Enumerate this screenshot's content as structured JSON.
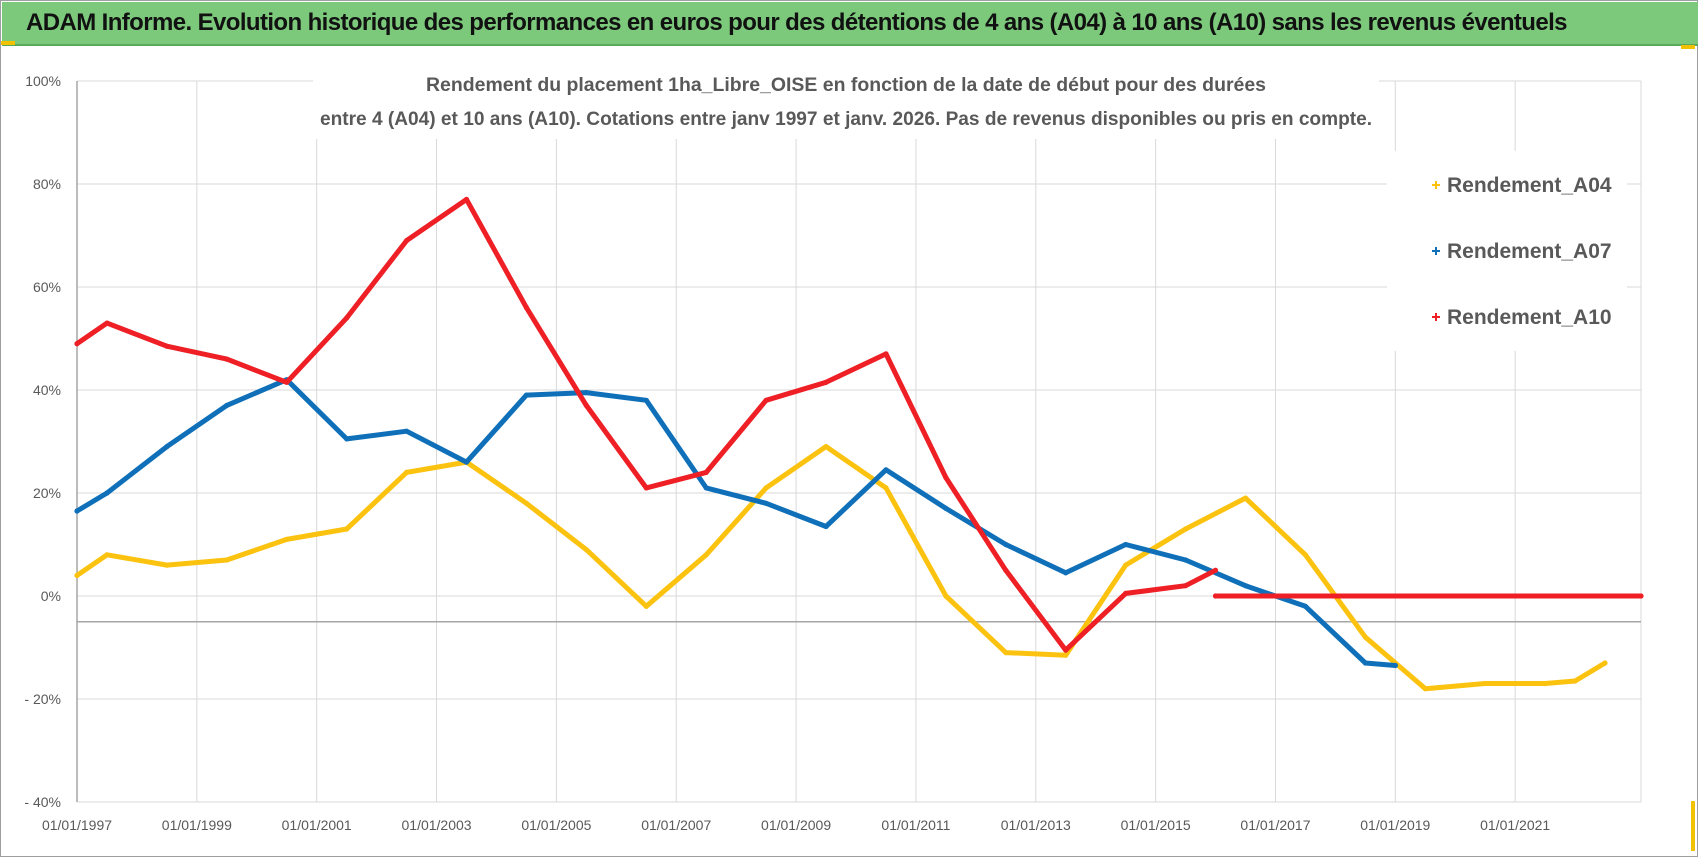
{
  "banner": {
    "title": "ADAM Informe. Evolution historique des performances en euros pour des détentions de 4 ans (A04) à 10 ans (A10) sans les revenus éventuels",
    "color": "#7cc97c"
  },
  "chart_data": {
    "type": "line",
    "title_line1": "Rendement du placement 1ha_Libre_OISE en fonction de la date de début pour des durées",
    "title_line2": "entre 4 (A04) et 10 ans (A10).  Cotations entre janv 1997 et janv. 2026. Pas de revenus disponibles ou pris en compte.",
    "x_range": [
      1997.0,
      2023.1
    ],
    "ylim": [
      -40,
      100
    ],
    "y_ticks": [
      {
        "value": 100,
        "label": "100%"
      },
      {
        "value": 80,
        "label": "80%"
      },
      {
        "value": 60,
        "label": "60%"
      },
      {
        "value": 40,
        "label": "40%"
      },
      {
        "value": 20,
        "label": "20%"
      },
      {
        "value": 0,
        "label": "0%"
      },
      {
        "value": -20,
        "label": "- 20%"
      },
      {
        "value": -40,
        "label": "- 40%"
      }
    ],
    "x_ticks": [
      {
        "value": 1997,
        "label": "01/01/1997"
      },
      {
        "value": 1999,
        "label": "01/01/1999"
      },
      {
        "value": 2001,
        "label": "01/01/2001"
      },
      {
        "value": 2003,
        "label": "01/01/2003"
      },
      {
        "value": 2005,
        "label": "01/01/2005"
      },
      {
        "value": 2007,
        "label": "01/01/2007"
      },
      {
        "value": 2009,
        "label": "01/01/2009"
      },
      {
        "value": 2011,
        "label": "01/01/2011"
      },
      {
        "value": 2013,
        "label": "01/01/2013"
      },
      {
        "value": 2015,
        "label": "01/01/2015"
      },
      {
        "value": 2017,
        "label": "01/01/2017"
      },
      {
        "value": 2019,
        "label": "01/01/2019"
      },
      {
        "value": 2021,
        "label": "01/01/2021"
      }
    ],
    "grid_vertical": [
      1997,
      1999,
      2001,
      2003,
      2005,
      2007,
      2009,
      2011,
      2013,
      2015,
      2017,
      2019,
      2021,
      2023.1
    ],
    "reference_line": -5,
    "legend_position": "top-right",
    "series": [
      {
        "name": "Rendement_A04",
        "color": "#fbc30f",
        "points": [
          [
            1997.0,
            4
          ],
          [
            1997.5,
            8
          ],
          [
            1998.5,
            6
          ],
          [
            1999.5,
            7
          ],
          [
            2000.5,
            11
          ],
          [
            2001.5,
            13
          ],
          [
            2002.5,
            24
          ],
          [
            2003.5,
            26
          ],
          [
            2004.5,
            18
          ],
          [
            2005.5,
            9
          ],
          [
            2006.5,
            -2
          ],
          [
            2007.5,
            8
          ],
          [
            2008.5,
            21
          ],
          [
            2009.5,
            29
          ],
          [
            2010.5,
            21
          ],
          [
            2011.5,
            0
          ],
          [
            2012.5,
            -11
          ],
          [
            2013.5,
            -11.5
          ],
          [
            2014.5,
            6
          ],
          [
            2015.5,
            13
          ],
          [
            2016.5,
            19
          ],
          [
            2017.5,
            8
          ],
          [
            2018.5,
            -8
          ],
          [
            2019.5,
            -18
          ],
          [
            2020.5,
            -17
          ],
          [
            2021.5,
            -17
          ],
          [
            2022.0,
            -16.5
          ],
          [
            2022.5,
            -13
          ]
        ]
      },
      {
        "name": "Rendement_A07",
        "color": "#0f70b9",
        "points": [
          [
            1997.0,
            16.5
          ],
          [
            1997.5,
            20
          ],
          [
            1998.5,
            29
          ],
          [
            1999.5,
            37
          ],
          [
            2000.5,
            42
          ],
          [
            2001.5,
            30.5
          ],
          [
            2002.5,
            32
          ],
          [
            2003.5,
            26
          ],
          [
            2004.5,
            39
          ],
          [
            2005.5,
            39.5
          ],
          [
            2006.5,
            38
          ],
          [
            2007.5,
            21
          ],
          [
            2008.5,
            18
          ],
          [
            2009.5,
            13.5
          ],
          [
            2010.5,
            24.5
          ],
          [
            2011.5,
            17
          ],
          [
            2012.5,
            10
          ],
          [
            2013.5,
            4.5
          ],
          [
            2014.5,
            10
          ],
          [
            2015.5,
            7
          ],
          [
            2016.5,
            2
          ],
          [
            2017.5,
            -2
          ],
          [
            2018.5,
            -13
          ],
          [
            2019.0,
            -13.5
          ]
        ]
      },
      {
        "name": "Rendement_A10",
        "color": "#ee1f25",
        "points": [
          [
            1997.0,
            49
          ],
          [
            1997.5,
            53
          ],
          [
            1998.5,
            48.5
          ],
          [
            1999.5,
            46
          ],
          [
            2000.5,
            41.5
          ],
          [
            2001.5,
            54
          ],
          [
            2002.5,
            69
          ],
          [
            2003.5,
            77
          ],
          [
            2004.5,
            56
          ],
          [
            2005.5,
            37
          ],
          [
            2006.5,
            21
          ],
          [
            2007.5,
            24
          ],
          [
            2008.5,
            38
          ],
          [
            2009.5,
            41.5
          ],
          [
            2010.5,
            47
          ],
          [
            2011.5,
            23
          ],
          [
            2012.5,
            5
          ],
          [
            2013.5,
            -10.5
          ],
          [
            2014.5,
            0.5
          ],
          [
            2015.5,
            2
          ],
          [
            2016.0,
            5
          ]
        ]
      },
      {
        "name": "Rendement_A10 (0%)",
        "legend": false,
        "color": "#ee1f25",
        "points": [
          [
            2016.0,
            0
          ],
          [
            2023.1,
            0
          ]
        ]
      }
    ],
    "legend": [
      {
        "label": "Rendement_A04",
        "color": "#fbc30f"
      },
      {
        "label": "Rendement_A07",
        "color": "#0f70b9"
      },
      {
        "label": "Rendement_A10",
        "color": "#ee1f25"
      }
    ]
  }
}
